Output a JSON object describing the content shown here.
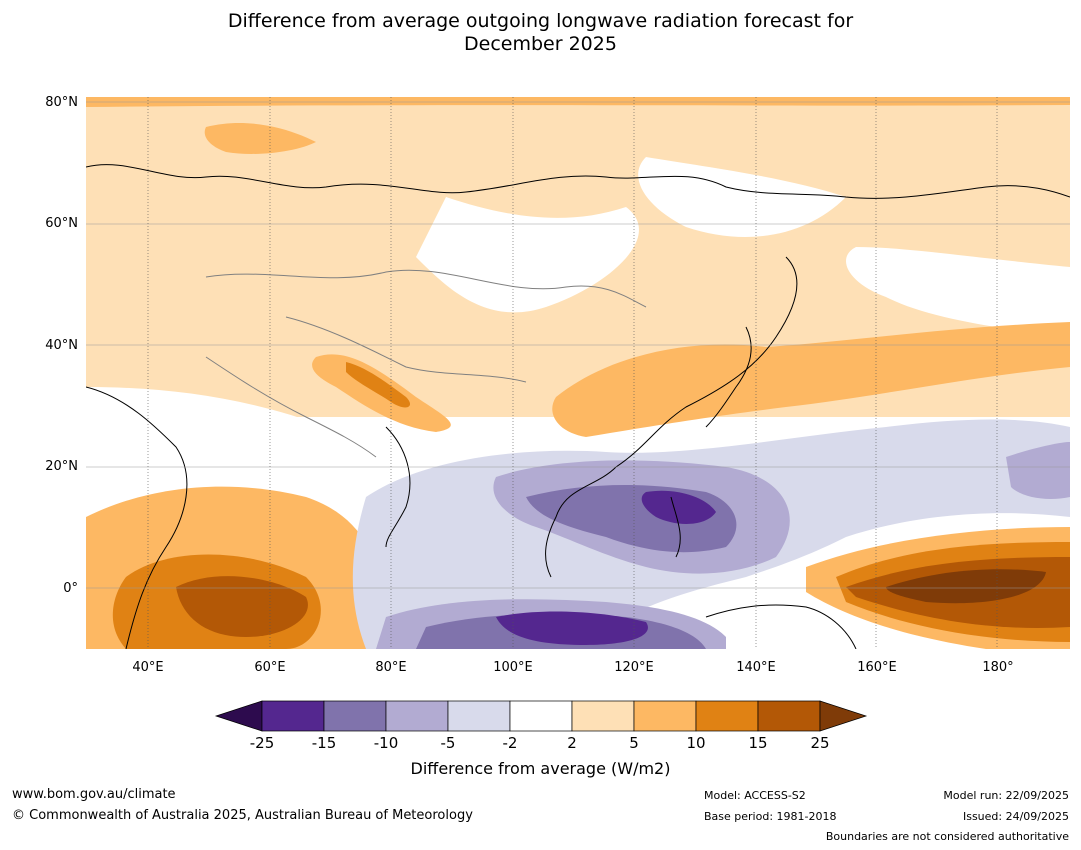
{
  "title_line1": "Difference from average outgoing longwave radiation forecast for",
  "title_line2": "December 2025",
  "lat_labels": [
    "80°N",
    "60°N",
    "40°N",
    "20°N",
    "0°"
  ],
  "lon_labels": [
    "40°E",
    "60°E",
    "80°E",
    "100°E",
    "120°E",
    "140°E",
    "160°E",
    "180°"
  ],
  "colorbar": {
    "ticks": [
      "-25",
      "-15",
      "-10",
      "-5",
      "-2",
      "2",
      "5",
      "10",
      "15",
      "25"
    ],
    "colors": [
      "#2d0b4e",
      "#54278f",
      "#8073ac",
      "#b2abd2",
      "#d8daeb",
      "#ffffff",
      "#fee0b6",
      "#fdb863",
      "#e08214",
      "#b35806",
      "#7f3b08"
    ],
    "label": "Difference from average (W/m2)"
  },
  "footer": {
    "website": "www.bom.gov.au/climate",
    "copyright": "© Commonwealth of Australia 2025, Australian Bureau of Meteorology",
    "model": "Model: ACCESS-S2",
    "base_period": "Base period: 1981-2018",
    "model_run": "Model run: 22/09/2025",
    "issued": "Issued: 24/09/2025",
    "boundaries": "Boundaries are not considered authoritative"
  }
}
